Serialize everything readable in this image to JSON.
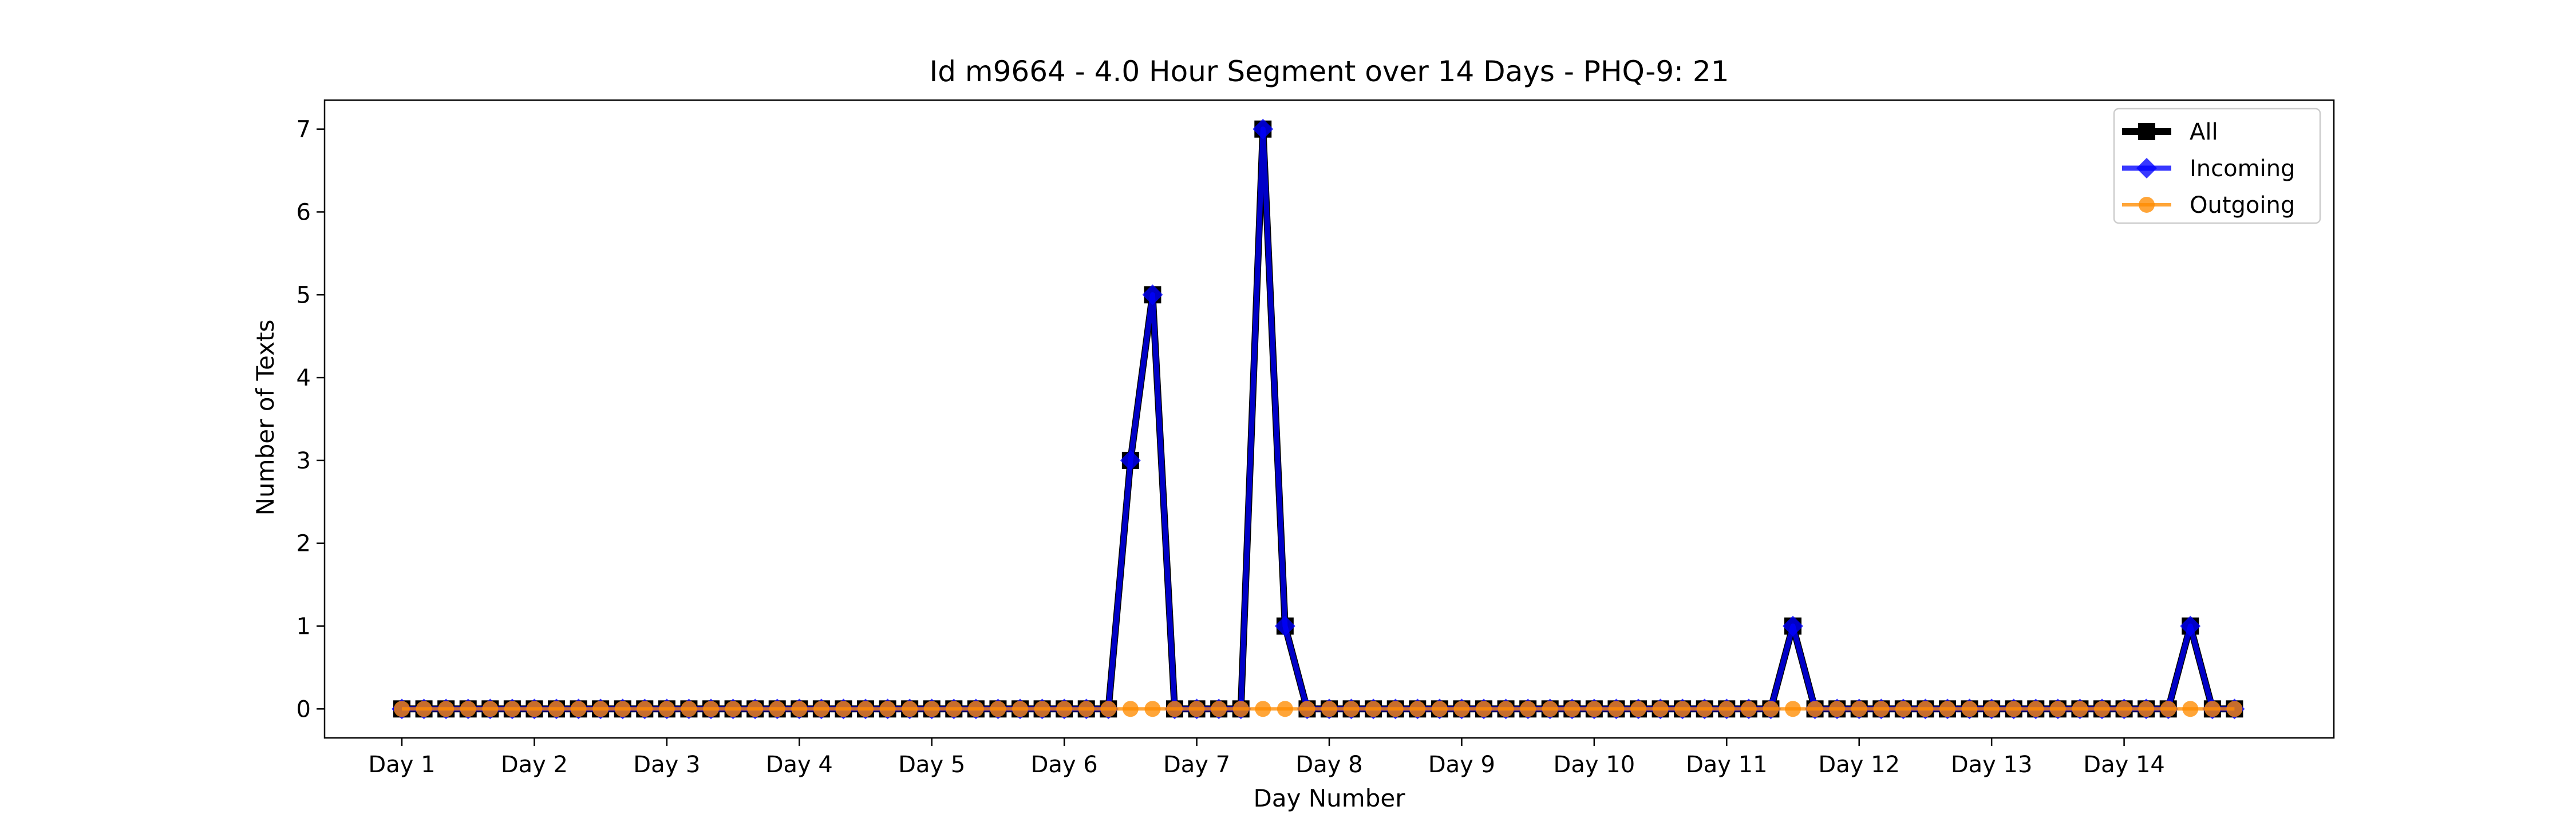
{
  "chart_data": {
    "type": "line",
    "title": "Id m9664 - 4.0 Hour Segment over 14 Days - PHQ-9: 21",
    "xlabel": "Day Number",
    "ylabel": "Number of Texts",
    "ylim": [
      -0.35,
      7.35
    ],
    "xlim": [
      -3.5,
      87.5
    ],
    "yticks": [
      0,
      1,
      2,
      3,
      4,
      5,
      6,
      7
    ],
    "x_ticks": [
      {
        "x": 0,
        "label": "Day 1"
      },
      {
        "x": 6,
        "label": "Day 2"
      },
      {
        "x": 12,
        "label": "Day 3"
      },
      {
        "x": 18,
        "label": "Day 4"
      },
      {
        "x": 24,
        "label": "Day 5"
      },
      {
        "x": 30,
        "label": "Day 6"
      },
      {
        "x": 36,
        "label": "Day 7"
      },
      {
        "x": 42,
        "label": "Day 8"
      },
      {
        "x": 48,
        "label": "Day 9"
      },
      {
        "x": 54,
        "label": "Day 10"
      },
      {
        "x": 60,
        "label": "Day 11"
      },
      {
        "x": 66,
        "label": "Day 12"
      },
      {
        "x": 72,
        "label": "Day 13"
      },
      {
        "x": 78,
        "label": "Day 14"
      }
    ],
    "grid": false,
    "legend_position": "top-right",
    "series": [
      {
        "name": "All",
        "color": "#000000",
        "marker": "square",
        "values": [
          0,
          0,
          0,
          0,
          0,
          0,
          0,
          0,
          0,
          0,
          0,
          0,
          0,
          0,
          0,
          0,
          0,
          0,
          0,
          0,
          0,
          0,
          0,
          0,
          0,
          0,
          0,
          0,
          0,
          0,
          0,
          0,
          0,
          3,
          5,
          0,
          0,
          0,
          0,
          7,
          1,
          0,
          0,
          0,
          0,
          0,
          0,
          0,
          0,
          0,
          0,
          0,
          0,
          0,
          0,
          0,
          0,
          0,
          0,
          0,
          0,
          0,
          0,
          1,
          0,
          0,
          0,
          0,
          0,
          0,
          0,
          0,
          0,
          0,
          0,
          0,
          0,
          0,
          0,
          0,
          0,
          1,
          0,
          0
        ]
      },
      {
        "name": "Incoming",
        "color": "#0000ff",
        "marker": "diamond",
        "values": [
          0,
          0,
          0,
          0,
          0,
          0,
          0,
          0,
          0,
          0,
          0,
          0,
          0,
          0,
          0,
          0,
          0,
          0,
          0,
          0,
          0,
          0,
          0,
          0,
          0,
          0,
          0,
          0,
          0,
          0,
          0,
          0,
          0,
          3,
          5,
          0,
          0,
          0,
          0,
          7,
          1,
          0,
          0,
          0,
          0,
          0,
          0,
          0,
          0,
          0,
          0,
          0,
          0,
          0,
          0,
          0,
          0,
          0,
          0,
          0,
          0,
          0,
          0,
          1,
          0,
          0,
          0,
          0,
          0,
          0,
          0,
          0,
          0,
          0,
          0,
          0,
          0,
          0,
          0,
          0,
          0,
          1,
          0,
          0
        ]
      },
      {
        "name": "Outgoing",
        "color": "#ff8c00",
        "marker": "circle",
        "values": [
          0,
          0,
          0,
          0,
          0,
          0,
          0,
          0,
          0,
          0,
          0,
          0,
          0,
          0,
          0,
          0,
          0,
          0,
          0,
          0,
          0,
          0,
          0,
          0,
          0,
          0,
          0,
          0,
          0,
          0,
          0,
          0,
          0,
          0,
          0,
          0,
          0,
          0,
          0,
          0,
          0,
          0,
          0,
          0,
          0,
          0,
          0,
          0,
          0,
          0,
          0,
          0,
          0,
          0,
          0,
          0,
          0,
          0,
          0,
          0,
          0,
          0,
          0,
          0,
          0,
          0,
          0,
          0,
          0,
          0,
          0,
          0,
          0,
          0,
          0,
          0,
          0,
          0,
          0,
          0,
          0,
          0,
          0,
          0
        ]
      }
    ]
  }
}
